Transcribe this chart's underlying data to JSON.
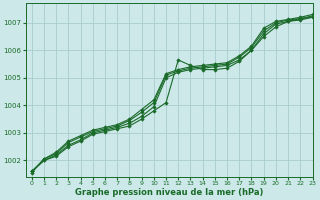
{
  "background_color": "#cce8e8",
  "grid_color": "#aacccc",
  "line_color": "#1a6b2a",
  "marker_color": "#1a6b2a",
  "xlabel": "Graphe pression niveau de la mer (hPa)",
  "xlim": [
    -0.5,
    23
  ],
  "ylim": [
    1001.4,
    1007.7
  ],
  "yticks": [
    1002,
    1003,
    1004,
    1005,
    1006,
    1007
  ],
  "xticks": [
    0,
    1,
    2,
    3,
    4,
    5,
    6,
    7,
    8,
    9,
    10,
    11,
    12,
    13,
    14,
    15,
    16,
    17,
    18,
    19,
    20,
    21,
    22,
    23
  ],
  "series": [
    [
      1001.6,
      1002.0,
      1002.15,
      1002.5,
      1002.7,
      1002.95,
      1003.05,
      1003.15,
      1003.25,
      1003.5,
      1003.8,
      1004.1,
      1005.65,
      1005.45,
      1005.3,
      1005.3,
      1005.35,
      1005.6,
      1006.0,
      1006.5,
      1006.85,
      1007.05,
      1007.15,
      1007.2
    ],
    [
      1001.6,
      1002.0,
      1002.2,
      1002.55,
      1002.75,
      1003.0,
      1003.1,
      1003.2,
      1003.35,
      1003.6,
      1003.95,
      1005.0,
      1005.2,
      1005.3,
      1005.35,
      1005.4,
      1005.45,
      1005.65,
      1006.0,
      1006.6,
      1006.95,
      1007.05,
      1007.1,
      1007.2
    ],
    [
      1001.6,
      1002.05,
      1002.25,
      1002.65,
      1002.85,
      1003.05,
      1003.15,
      1003.25,
      1003.45,
      1003.75,
      1004.1,
      1005.1,
      1005.25,
      1005.35,
      1005.4,
      1005.45,
      1005.5,
      1005.75,
      1006.1,
      1006.7,
      1007.0,
      1007.1,
      1007.15,
      1007.25
    ],
    [
      1001.55,
      1002.05,
      1002.3,
      1002.7,
      1002.9,
      1003.1,
      1003.2,
      1003.3,
      1003.5,
      1003.85,
      1004.2,
      1005.15,
      1005.3,
      1005.4,
      1005.45,
      1005.5,
      1005.55,
      1005.8,
      1006.15,
      1006.8,
      1007.05,
      1007.12,
      1007.2,
      1007.3
    ]
  ]
}
